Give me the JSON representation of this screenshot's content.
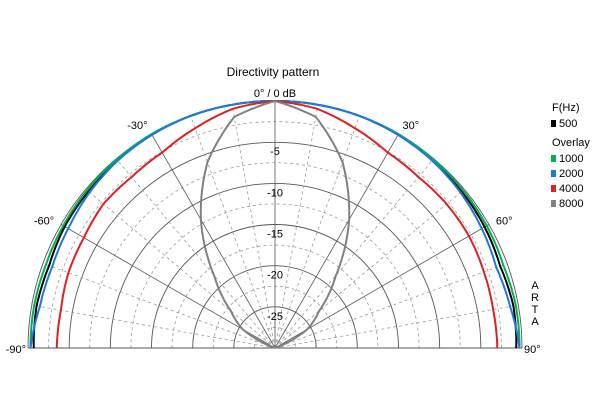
{
  "chart_data": {
    "type": "polar",
    "title": "Directivity pattern",
    "radial_axis": {
      "min": -30,
      "max": 0,
      "unit": "dB",
      "ticks": [
        0,
        -5,
        -10,
        -15,
        -20,
        -25
      ],
      "tick_labels": [
        "0° / 0 dB",
        "-5",
        "-10",
        "-15",
        "-20",
        "-25"
      ]
    },
    "angle_axis": {
      "range": [
        -90,
        90
      ],
      "labeled": [
        -90,
        -60,
        -30,
        30,
        60,
        90
      ],
      "tick_labels": [
        "-90°",
        "-60°",
        "-30°",
        "30°",
        "60°",
        "90°"
      ]
    },
    "legend": {
      "heading": "F(Hz)",
      "overlay_heading": "Overlay",
      "main": [
        {
          "name": "500",
          "color": "#000000"
        }
      ],
      "overlay": [
        {
          "name": "1000",
          "color": "#00b050"
        },
        {
          "name": "2000",
          "color": "#1f77e0"
        },
        {
          "name": "4000",
          "color": "#e02020"
        },
        {
          "name": "8000",
          "color": "#808080"
        }
      ]
    },
    "side_label": "ARTA",
    "series": [
      {
        "name": "500",
        "color": "#000000",
        "angles": [
          -90,
          -80,
          -70,
          -60,
          -50,
          -40,
          -30,
          -20,
          -10,
          0,
          10,
          20,
          30,
          40,
          50,
          60,
          70,
          80,
          90
        ],
        "values": [
          -0.7,
          -0.6,
          -0.8,
          -0.5,
          -0.4,
          -0.2,
          -0.1,
          0,
          0,
          0,
          0,
          0,
          -0.1,
          -0.2,
          -0.4,
          -0.6,
          -0.9,
          -0.6,
          -0.7
        ]
      },
      {
        "name": "1000",
        "color": "#00b050",
        "angles": [
          -90,
          -80,
          -70,
          -60,
          -50,
          -40,
          -30,
          -20,
          -10,
          0,
          10,
          20,
          30,
          40,
          50,
          60,
          70,
          80,
          90
        ],
        "values": [
          -0.3,
          -0.3,
          -0.4,
          -0.3,
          -0.2,
          -0.1,
          0,
          0,
          0,
          0,
          0,
          0,
          0,
          -0.1,
          -0.2,
          -0.3,
          -0.5,
          -0.3,
          -0.3
        ]
      },
      {
        "name": "2000",
        "color": "#1f77e0",
        "angles": [
          -90,
          -80,
          -70,
          -60,
          -50,
          -40,
          -30,
          -20,
          -10,
          0,
          10,
          20,
          30,
          40,
          50,
          60,
          70,
          80,
          90
        ],
        "values": [
          -0.3,
          -1.0,
          -1.2,
          -1.0,
          -0.6,
          -0.3,
          -0.1,
          0,
          0,
          0,
          0,
          0,
          -0.1,
          -0.3,
          -0.6,
          -1.0,
          -1.4,
          -1.0,
          -0.3
        ]
      },
      {
        "name": "4000",
        "color": "#e02020",
        "angles": [
          -90,
          -80,
          -70,
          -60,
          -50,
          -40,
          -30,
          -20,
          -10,
          0,
          10,
          20,
          30,
          40,
          50,
          60,
          70,
          80,
          90
        ],
        "values": [
          -3.5,
          -3.6,
          -3.3,
          -3.2,
          -2.8,
          -2.9,
          -2.6,
          -1.6,
          -0.5,
          0,
          -0.5,
          -1.6,
          -2.6,
          -2.9,
          -2.8,
          -2.8,
          -3.0,
          -3.1,
          -3.0
        ]
      },
      {
        "name": "8000",
        "color": "#808080",
        "angles": [
          -90,
          -80,
          -70,
          -60,
          -50,
          -40,
          -30,
          -20,
          -10,
          0,
          10,
          20,
          30,
          40,
          50,
          60,
          70,
          80,
          90
        ],
        "values": [
          -30,
          -30,
          -30,
          -25.5,
          -23,
          -18.5,
          -12,
          -6,
          -1.5,
          0,
          -1.5,
          -6,
          -12,
          -18.5,
          -23,
          -25.5,
          -30,
          -30,
          -30
        ]
      }
    ]
  }
}
